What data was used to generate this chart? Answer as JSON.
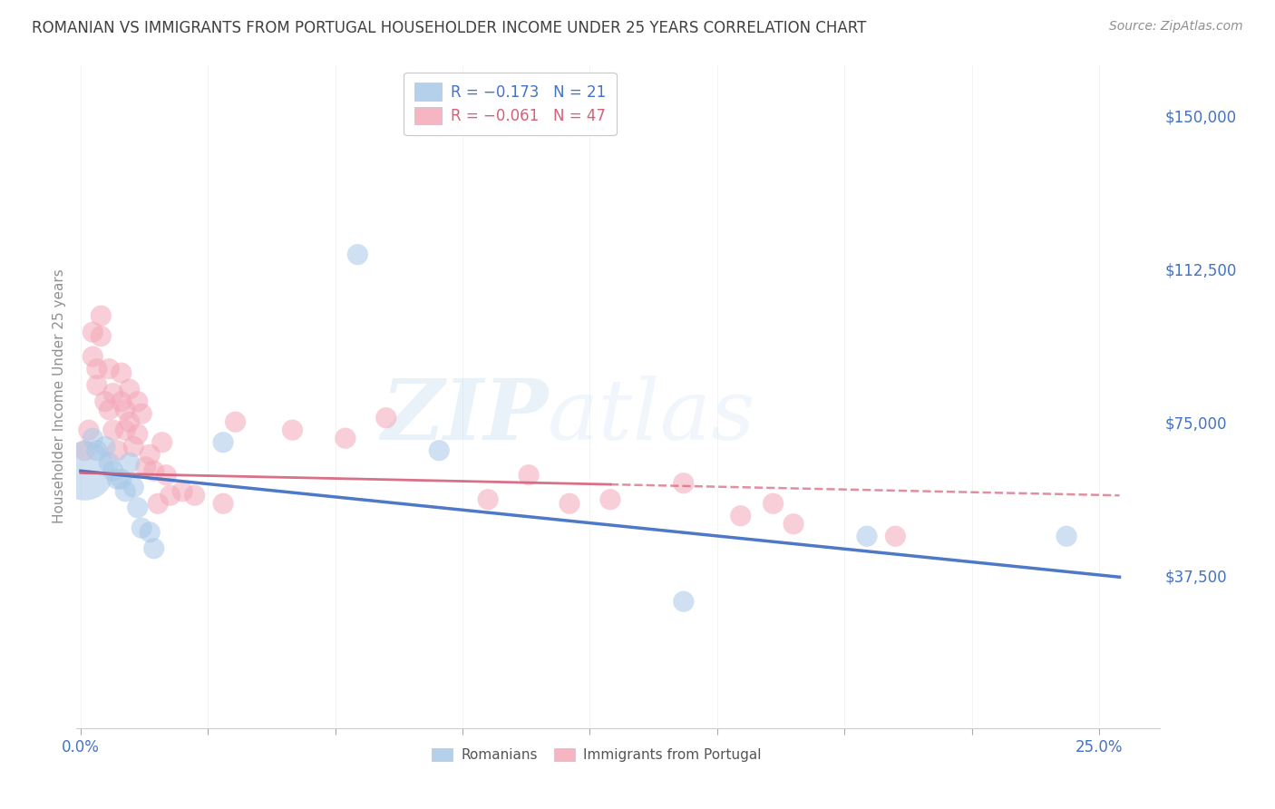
{
  "title": "ROMANIAN VS IMMIGRANTS FROM PORTUGAL HOUSEHOLDER INCOME UNDER 25 YEARS CORRELATION CHART",
  "source": "Source: ZipAtlas.com",
  "ylabel_label": "Householder Income Under 25 years",
  "xlim": [
    -0.001,
    0.265
  ],
  "ylim": [
    0,
    162500
  ],
  "xtick_positions": [
    0.0,
    0.03125,
    0.0625,
    0.09375,
    0.125,
    0.15625,
    0.1875,
    0.21875,
    0.25
  ],
  "xtick_labels_shown": {
    "0.0": "0.0%",
    "0.25": "25.0%"
  },
  "yticks": [
    37500,
    75000,
    112500,
    150000
  ],
  "yticklabels": [
    "$37,500",
    "$75,000",
    "$112,500",
    "$150,000"
  ],
  "watermark_zip": "ZIP",
  "watermark_atlas": "atlas",
  "romanian_color": "#a8c8e8",
  "portugal_color": "#f4a8b8",
  "romanian_line_color": "#4472c4",
  "portugal_line_solid_color": "#d4607a",
  "portugal_line_dash_color": "#d4607a",
  "title_color": "#404040",
  "tick_color": "#4472c4",
  "source_color": "#909090",
  "ylabel_color": "#909090",
  "grid_color": "#d8d8d8",
  "background": "#ffffff",
  "romanian_x": [
    0.001,
    0.003,
    0.004,
    0.006,
    0.007,
    0.008,
    0.009,
    0.01,
    0.011,
    0.012,
    0.013,
    0.014,
    0.015,
    0.017,
    0.018,
    0.035,
    0.068,
    0.088,
    0.148,
    0.193,
    0.242
  ],
  "romanian_y": [
    63000,
    71000,
    68000,
    69000,
    65000,
    63000,
    61000,
    61000,
    58000,
    65000,
    59000,
    54000,
    49000,
    48000,
    44000,
    70000,
    116000,
    68000,
    31000,
    47000,
    47000
  ],
  "romanian_sizes": [
    2200,
    280,
    280,
    280,
    280,
    280,
    280,
    280,
    280,
    280,
    280,
    280,
    280,
    280,
    280,
    280,
    280,
    280,
    280,
    280,
    280
  ],
  "portugal_x": [
    0.001,
    0.002,
    0.003,
    0.003,
    0.004,
    0.004,
    0.005,
    0.005,
    0.006,
    0.007,
    0.007,
    0.008,
    0.008,
    0.009,
    0.01,
    0.01,
    0.011,
    0.011,
    0.012,
    0.012,
    0.013,
    0.014,
    0.014,
    0.015,
    0.016,
    0.017,
    0.018,
    0.019,
    0.02,
    0.021,
    0.022,
    0.025,
    0.028,
    0.035,
    0.038,
    0.052,
    0.065,
    0.075,
    0.1,
    0.11,
    0.12,
    0.13,
    0.148,
    0.162,
    0.17,
    0.175,
    0.2
  ],
  "portugal_y": [
    68000,
    73000,
    97000,
    91000,
    88000,
    84000,
    101000,
    96000,
    80000,
    78000,
    88000,
    82000,
    73000,
    68000,
    87000,
    80000,
    78000,
    73000,
    83000,
    75000,
    69000,
    80000,
    72000,
    77000,
    64000,
    67000,
    63000,
    55000,
    70000,
    62000,
    57000,
    58000,
    57000,
    55000,
    75000,
    73000,
    71000,
    76000,
    56000,
    62000,
    55000,
    56000,
    60000,
    52000,
    55000,
    50000,
    47000
  ],
  "portugal_sizes": [
    280,
    280,
    280,
    280,
    280,
    280,
    280,
    280,
    280,
    280,
    280,
    280,
    280,
    280,
    280,
    280,
    280,
    280,
    280,
    280,
    280,
    280,
    280,
    280,
    280,
    280,
    280,
    280,
    280,
    280,
    280,
    280,
    280,
    280,
    280,
    280,
    280,
    280,
    280,
    280,
    280,
    280,
    280,
    280,
    280,
    280,
    280
  ]
}
